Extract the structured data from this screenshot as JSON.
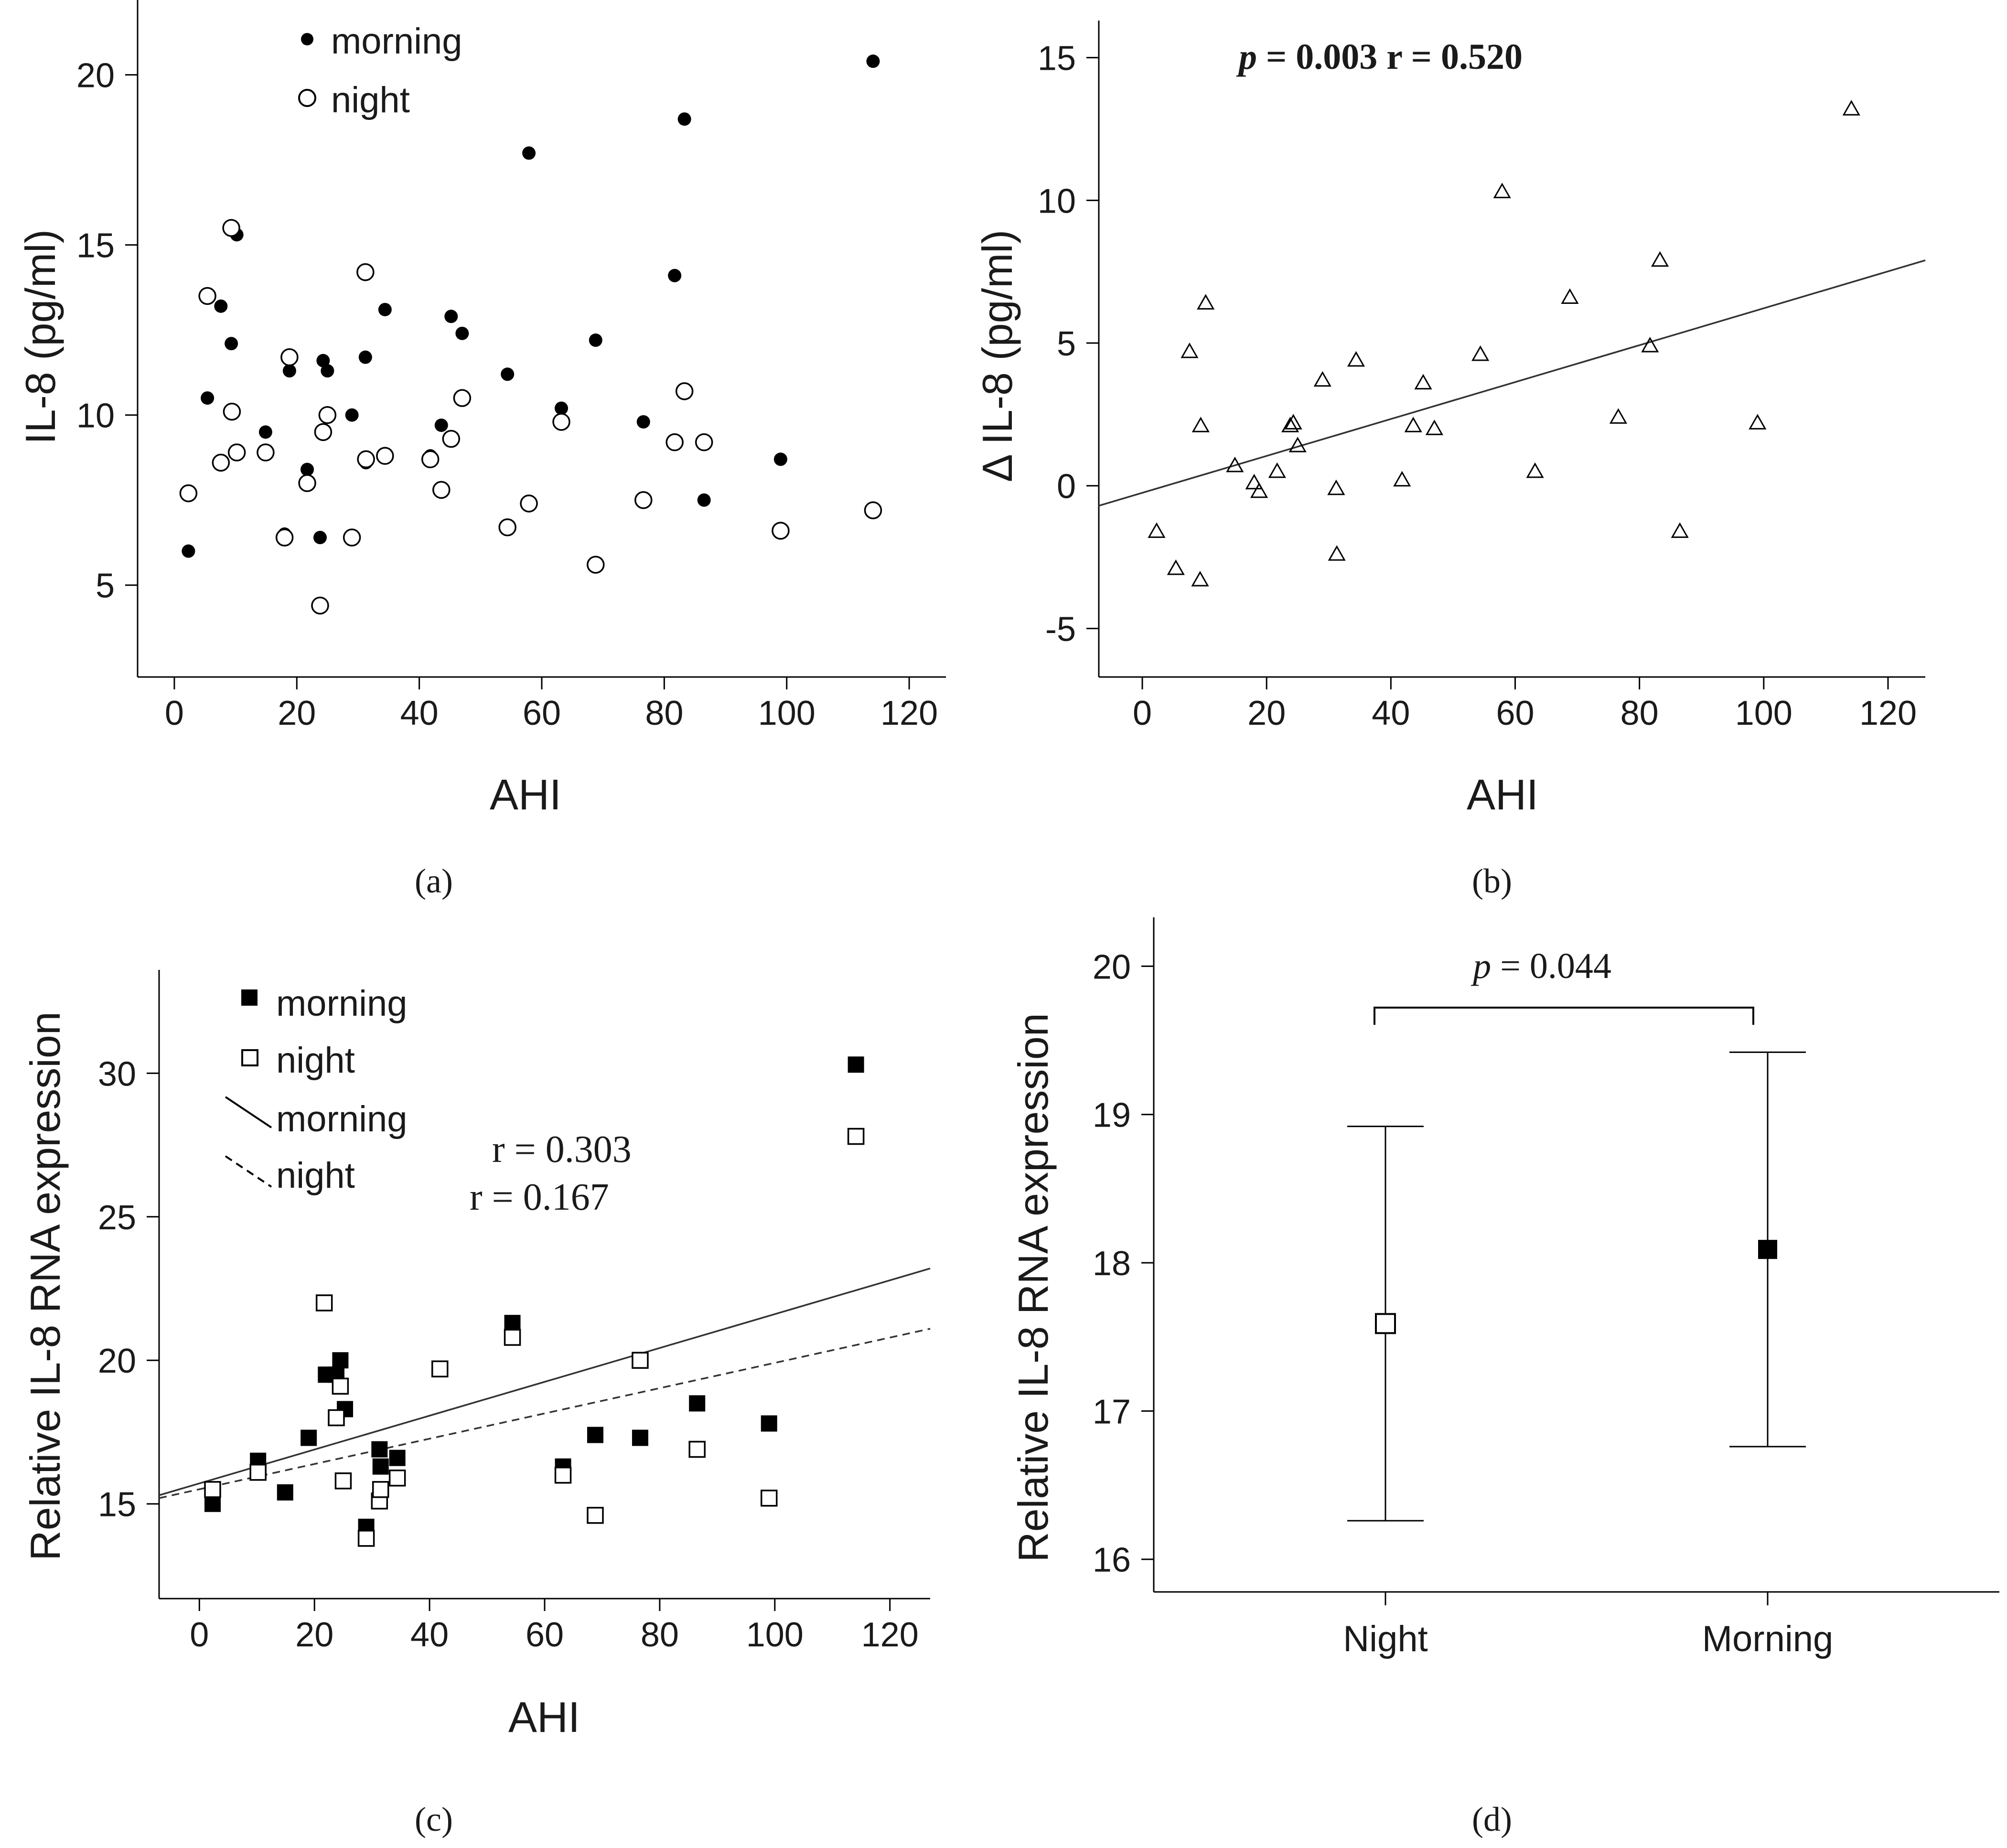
{
  "figure": {
    "panels": [
      "(a)",
      "(b)",
      "(c)",
      "(d)"
    ]
  },
  "chart_data": [
    {
      "id": "a",
      "type": "scatter",
      "panel_label": "(a)",
      "title": "",
      "xlabel": "AHI",
      "ylabel": "IL-8 (pg/ml)",
      "xlim": [
        -6,
        126
      ],
      "ylim": [
        2.3,
        22.2
      ],
      "xticks": [
        0,
        20,
        40,
        60,
        80,
        100,
        120
      ],
      "yticks": [
        5,
        10,
        15,
        20
      ],
      "legend": {
        "placement": "top-left",
        "entries": [
          "morning",
          "night"
        ]
      },
      "series": [
        {
          "name": "morning",
          "marker": "filled-circle",
          "points": [
            [
              2.3,
              6.0
            ],
            [
              5.4,
              10.5
            ],
            [
              7.6,
              13.2
            ],
            [
              9.3,
              12.1
            ],
            [
              10.2,
              15.3
            ],
            [
              14.9,
              9.5
            ],
            [
              18.0,
              6.5
            ],
            [
              18.8,
              11.3
            ],
            [
              21.7,
              8.4
            ],
            [
              23.8,
              6.4
            ],
            [
              24.3,
              11.6
            ],
            [
              25.0,
              11.3
            ],
            [
              29.0,
              10.0
            ],
            [
              31.2,
              11.7
            ],
            [
              31.3,
              8.6
            ],
            [
              34.4,
              13.1
            ],
            [
              41.8,
              8.8
            ],
            [
              43.6,
              9.7
            ],
            [
              45.2,
              12.9
            ],
            [
              47.0,
              12.4
            ],
            [
              54.4,
              11.2
            ],
            [
              57.9,
              17.7
            ],
            [
              63.2,
              10.2
            ],
            [
              68.8,
              12.2
            ],
            [
              76.6,
              9.8
            ],
            [
              81.7,
              14.1
            ],
            [
              83.3,
              18.7
            ],
            [
              86.5,
              7.5
            ],
            [
              99.0,
              8.7
            ],
            [
              114.1,
              20.4
            ]
          ]
        },
        {
          "name": "night",
          "marker": "open-circle",
          "points": [
            [
              2.3,
              7.7
            ],
            [
              5.4,
              13.5
            ],
            [
              7.6,
              8.6
            ],
            [
              9.3,
              15.5
            ],
            [
              9.4,
              10.1
            ],
            [
              10.2,
              8.9
            ],
            [
              14.9,
              8.9
            ],
            [
              18.0,
              6.4
            ],
            [
              18.8,
              11.7
            ],
            [
              21.7,
              8.0
            ],
            [
              23.8,
              4.4
            ],
            [
              24.3,
              9.5
            ],
            [
              25.0,
              10.0
            ],
            [
              29.0,
              6.4
            ],
            [
              31.2,
              14.2
            ],
            [
              31.3,
              8.7
            ],
            [
              34.4,
              8.8
            ],
            [
              41.8,
              8.7
            ],
            [
              43.6,
              7.8
            ],
            [
              45.2,
              9.3
            ],
            [
              47.0,
              10.5
            ],
            [
              54.4,
              6.7
            ],
            [
              57.9,
              7.4
            ],
            [
              63.2,
              9.8
            ],
            [
              68.8,
              5.6
            ],
            [
              76.6,
              7.5
            ],
            [
              81.7,
              9.2
            ],
            [
              83.3,
              10.7
            ],
            [
              86.5,
              9.2
            ],
            [
              99.0,
              6.6
            ],
            [
              114.1,
              7.2
            ]
          ]
        }
      ]
    },
    {
      "id": "b",
      "type": "scatter",
      "panel_label": "(b)",
      "title": "",
      "annotation": {
        "p_symbol": "p",
        "p_rest": " = 0.003 r = 0.520"
      },
      "xlabel": "AHI",
      "ylabel": "Δ IL-8 (pg/ml)",
      "xlim": [
        -7,
        126
      ],
      "ylim": [
        -6.7,
        16.3
      ],
      "xticks": [
        0,
        20,
        40,
        60,
        80,
        100,
        120
      ],
      "yticks": [
        -5,
        0,
        5,
        10,
        15
      ],
      "fit_line": {
        "x": [
          -7,
          126
        ],
        "y": [
          -0.7,
          7.9
        ]
      },
      "series": [
        {
          "name": "Δ IL-8",
          "marker": "open-triangle",
          "points": [
            [
              2.3,
              -1.6
            ],
            [
              5.4,
              -2.9
            ],
            [
              7.6,
              4.7
            ],
            [
              9.3,
              -3.3
            ],
            [
              9.4,
              2.1
            ],
            [
              10.2,
              6.4
            ],
            [
              14.9,
              0.7
            ],
            [
              18.0,
              0.1
            ],
            [
              18.8,
              -0.2
            ],
            [
              21.7,
              0.5
            ],
            [
              23.8,
              2.1
            ],
            [
              24.3,
              2.2
            ],
            [
              25.0,
              1.4
            ],
            [
              29.0,
              3.7
            ],
            [
              31.2,
              -0.1
            ],
            [
              31.3,
              -2.4
            ],
            [
              34.4,
              4.4
            ],
            [
              41.8,
              0.2
            ],
            [
              43.6,
              2.1
            ],
            [
              45.2,
              3.6
            ],
            [
              47.0,
              2.0
            ],
            [
              54.4,
              4.6
            ],
            [
              57.9,
              10.3
            ],
            [
              63.2,
              0.5
            ],
            [
              68.8,
              6.6
            ],
            [
              76.6,
              2.4
            ],
            [
              81.7,
              4.9
            ],
            [
              83.3,
              7.9
            ],
            [
              86.5,
              -1.6
            ],
            [
              99.0,
              2.2
            ],
            [
              114.1,
              13.2
            ]
          ]
        }
      ]
    },
    {
      "id": "c",
      "type": "scatter",
      "panel_label": "(c)",
      "title": "",
      "annotations": [
        "r = 0.303",
        "r = 0.167"
      ],
      "xlabel": "AHI",
      "ylabel": "Relative IL-8 RNA expression",
      "xlim": [
        -7,
        127
      ],
      "ylim": [
        11.7,
        33.6
      ],
      "xticks": [
        0,
        20,
        40,
        60,
        80,
        100,
        120
      ],
      "yticks": [
        15,
        20,
        25,
        30
      ],
      "legend": {
        "placement": "top-left",
        "entries": [
          "morning",
          "night",
          "morning",
          "night"
        ]
      },
      "fit_lines": [
        {
          "name": "morning",
          "style": "solid",
          "x": [
            -7,
            127
          ],
          "y": [
            15.3,
            23.2
          ]
        },
        {
          "name": "night",
          "style": "dashed",
          "x": [
            -7,
            127
          ],
          "y": [
            15.2,
            21.1
          ]
        }
      ],
      "series": [
        {
          "name": "morning",
          "marker": "filled-square",
          "points": [
            [
              2.3,
              15.0
            ],
            [
              10.2,
              16.5
            ],
            [
              14.9,
              15.4
            ],
            [
              19.0,
              17.3
            ],
            [
              22.0,
              19.5
            ],
            [
              23.8,
              19.5
            ],
            [
              24.5,
              20.0
            ],
            [
              25.3,
              18.3
            ],
            [
              29.0,
              14.2
            ],
            [
              31.3,
              16.9
            ],
            [
              31.5,
              16.3
            ],
            [
              34.4,
              16.6
            ],
            [
              41.8,
              19.7
            ],
            [
              54.4,
              21.3
            ],
            [
              63.2,
              16.3
            ],
            [
              68.8,
              17.4
            ],
            [
              76.6,
              17.3
            ],
            [
              86.5,
              18.5
            ],
            [
              99.0,
              17.8
            ],
            [
              114.1,
              30.3
            ]
          ]
        },
        {
          "name": "night",
          "marker": "open-square",
          "points": [
            [
              2.3,
              15.5
            ],
            [
              10.2,
              16.1
            ],
            [
              21.7,
              22.0
            ],
            [
              23.8,
              18.0
            ],
            [
              24.5,
              19.1
            ],
            [
              25.0,
              15.8
            ],
            [
              29.0,
              13.8
            ],
            [
              31.3,
              15.1
            ],
            [
              31.5,
              15.5
            ],
            [
              34.4,
              15.9
            ],
            [
              41.8,
              19.7
            ],
            [
              54.4,
              20.8
            ],
            [
              63.2,
              16.0
            ],
            [
              68.8,
              14.6
            ],
            [
              76.6,
              20.0
            ],
            [
              86.5,
              16.9
            ],
            [
              99.0,
              15.2
            ],
            [
              114.1,
              27.8
            ]
          ]
        }
      ]
    },
    {
      "id": "d",
      "type": "errorbar",
      "panel_label": "(d)",
      "title": "",
      "annotation": {
        "p_symbol": "p",
        "p_rest": " = 0.044"
      },
      "xlabel": "",
      "ylabel": "Relative IL-8 RNA expression",
      "categories": [
        "Night",
        "Morning"
      ],
      "ylim": [
        15.78,
        20.33
      ],
      "yticks": [
        16,
        17,
        18,
        19,
        20
      ],
      "series": [
        {
          "name": "Night",
          "marker": "open-square",
          "mean": 17.59,
          "lower": 16.26,
          "upper": 18.92
        },
        {
          "name": "Morning",
          "marker": "filled-square",
          "mean": 18.09,
          "lower": 16.76,
          "upper": 19.42
        }
      ]
    }
  ]
}
